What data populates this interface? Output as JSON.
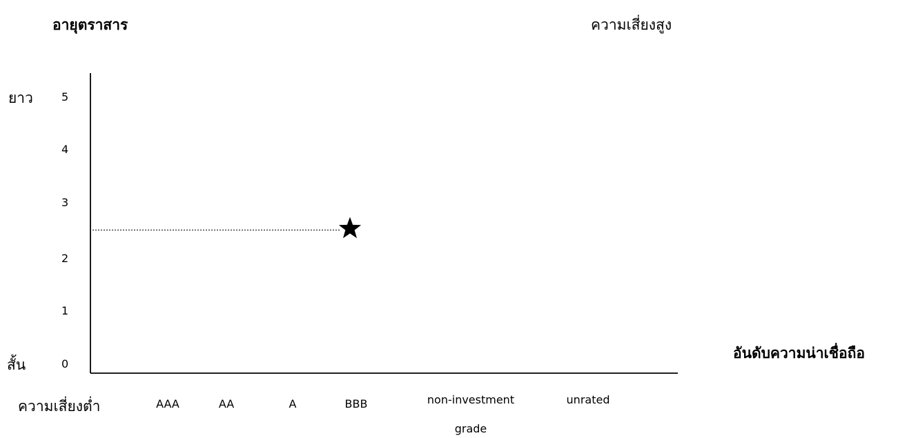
{
  "chart_data": {
    "type": "scatter",
    "ylabel": "อายุตราสาร",
    "xlabel": "อันดับความน่าเชื่อถือ",
    "high_risk_label": "ความเสี่ยงสูง",
    "low_risk_label": "ความเสี่ยงต่ำ",
    "y_long_label": "ยาว",
    "y_short_label": "สั้น",
    "categories": [
      "AAA",
      "AA",
      "A",
      "BBB",
      "non-investment",
      "unrated"
    ],
    "category_note": "grade",
    "yticks": [
      "0",
      "1",
      "2",
      "3",
      "4",
      "5"
    ],
    "ylim": [
      0,
      5
    ],
    "grid": false,
    "points": [
      {
        "category": "BBB",
        "y": 2.5,
        "marker": "star",
        "dotted_guide_to_y_axis": true
      }
    ]
  }
}
